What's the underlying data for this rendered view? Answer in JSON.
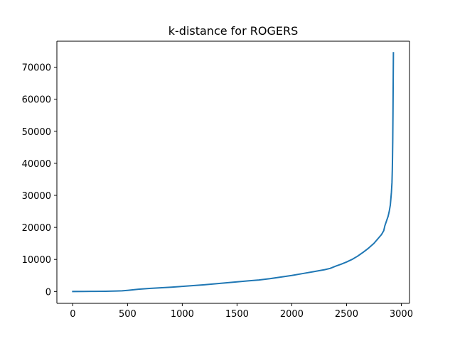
{
  "chart_data": {
    "type": "line",
    "title": "k-distance for ROGERS",
    "xlabel": "",
    "ylabel": "",
    "xlim": [
      -145,
      3075
    ],
    "ylim": [
      -3700,
      78100
    ],
    "xticks": [
      0,
      500,
      1000,
      1500,
      2000,
      2500,
      3000
    ],
    "xtick_labels": [
      "0",
      "500",
      "1000",
      "1500",
      "2000",
      "2500",
      "3000"
    ],
    "yticks": [
      0,
      10000,
      20000,
      30000,
      40000,
      50000,
      60000,
      70000
    ],
    "ytick_labels": [
      "0",
      "10000",
      "20000",
      "30000",
      "40000",
      "50000",
      "60000",
      "70000"
    ],
    "grid": false,
    "legend": false,
    "series": [
      {
        "color": "#1f77b4",
        "x": [
          0,
          100,
          200,
          300,
          400,
          450,
          500,
          600,
          700,
          800,
          900,
          1000,
          1100,
          1200,
          1300,
          1400,
          1500,
          1600,
          1700,
          1800,
          1900,
          2000,
          2100,
          2200,
          2300,
          2350,
          2400,
          2450,
          2500,
          2550,
          2600,
          2650,
          2700,
          2750,
          2780,
          2800,
          2820,
          2840,
          2850,
          2860,
          2870,
          2880,
          2890,
          2900,
          2905,
          2910,
          2915,
          2918,
          2920,
          2922,
          2924,
          2926,
          2928
        ],
        "y": [
          0,
          20,
          50,
          80,
          150,
          200,
          350,
          700,
          950,
          1150,
          1350,
          1600,
          1850,
          2100,
          2400,
          2700,
          3000,
          3300,
          3600,
          4000,
          4500,
          5000,
          5600,
          6200,
          6800,
          7200,
          7900,
          8500,
          9200,
          10000,
          11000,
          12200,
          13500,
          15000,
          16200,
          17000,
          17800,
          19000,
          20500,
          21500,
          22500,
          23500,
          25000,
          27000,
          29000,
          31000,
          34000,
          38000,
          42000,
          47000,
          55000,
          65000,
          74500
        ]
      }
    ]
  }
}
